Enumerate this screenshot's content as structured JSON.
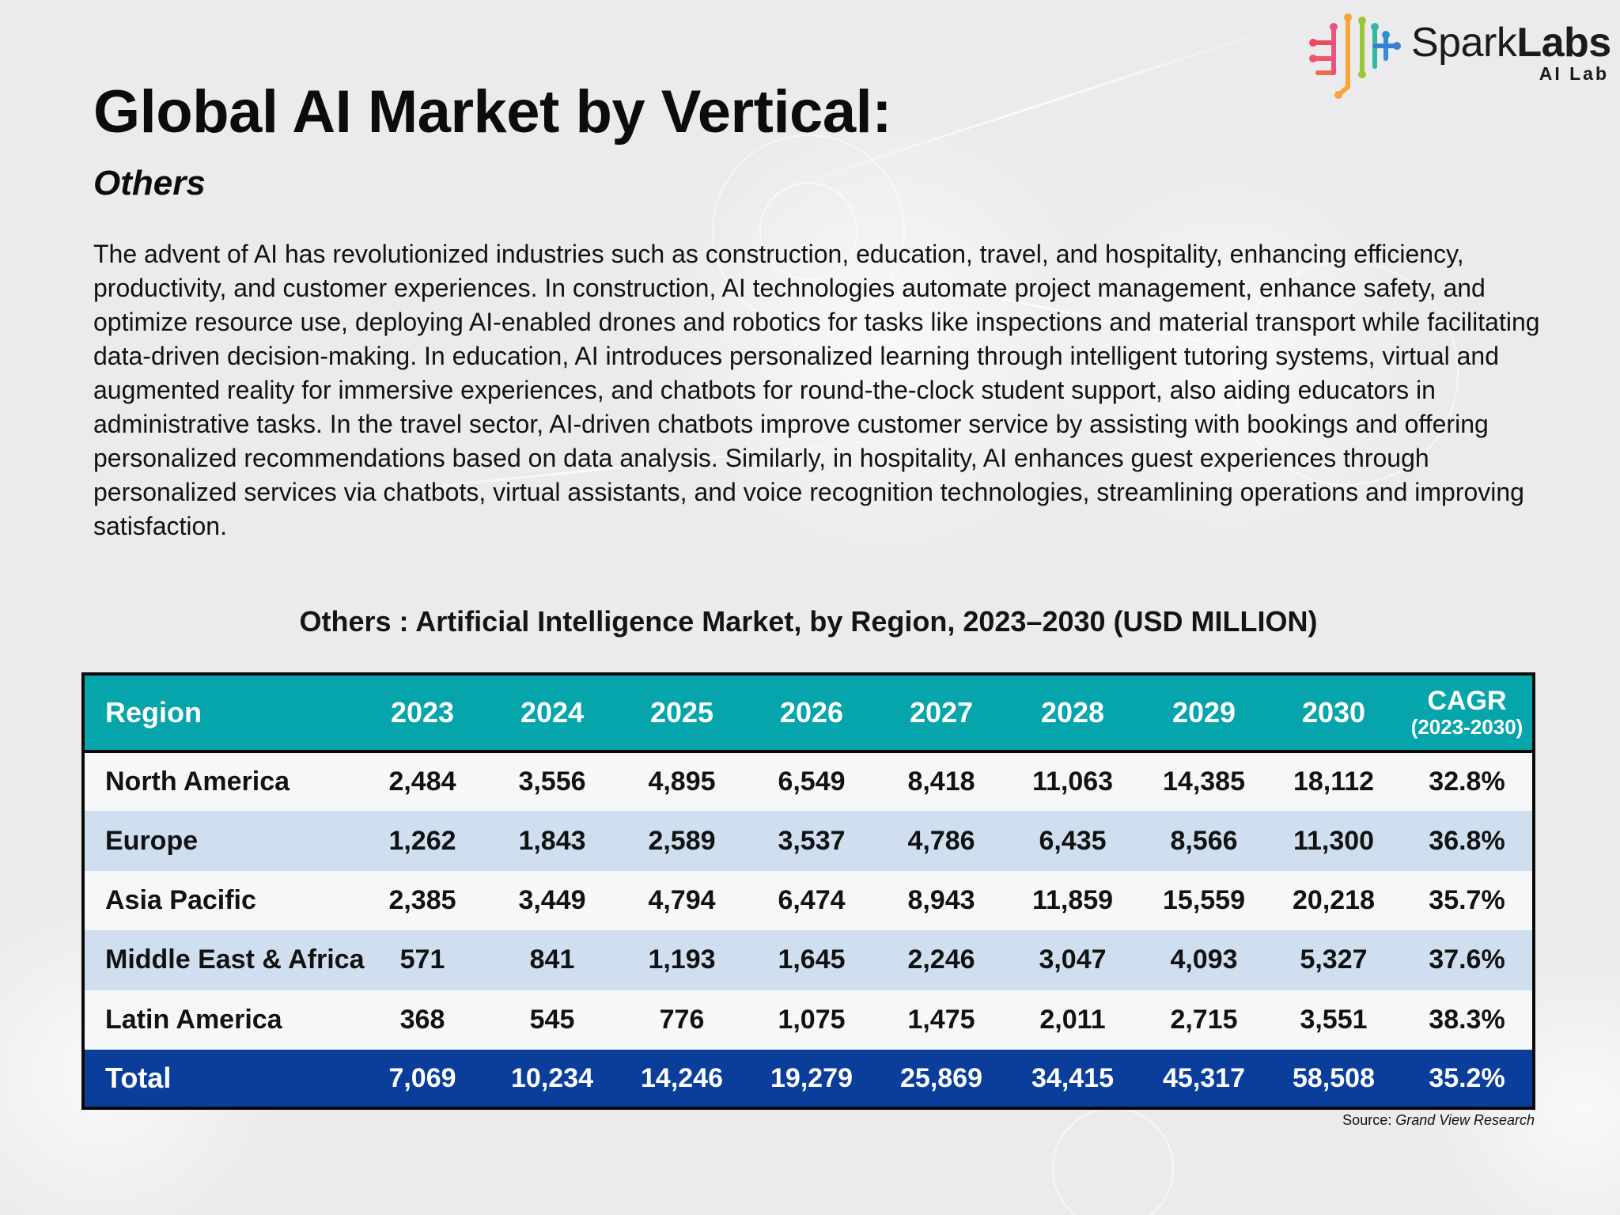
{
  "brand": {
    "name_regular": "Spark",
    "name_bold": "Labs",
    "sub": "AI Lab"
  },
  "page": {
    "title": "Global AI Market by Vertical:",
    "subtitle": "Others",
    "body": "The advent of AI has revolutionized industries such as construction, education, travel, and hospitality, enhancing efficiency, productivity, and customer experiences. In construction, AI technologies automate project management, enhance safety, and optimize resource use, deploying AI-enabled drones and robotics for tasks like inspections and material transport while facilitating data-driven decision-making. In education, AI introduces personalized learning through intelligent tutoring systems, virtual and augmented reality for immersive experiences, and chatbots for round-the-clock student support, also aiding educators in administrative tasks. In the travel sector, AI-driven chatbots improve customer service by assisting with bookings and offering personalized recommendations based on data analysis. Similarly, in hospitality, AI enhances guest experiences through personalized services via chatbots, virtual assistants, and voice recognition technologies, streamlining operations and improving satisfaction."
  },
  "table": {
    "title": "Others : Artificial Intelligence Market, by Region, 2023–2030 (USD MILLION)",
    "headers": {
      "region": "Region",
      "years": [
        "2023",
        "2024",
        "2025",
        "2026",
        "2027",
        "2028",
        "2029",
        "2030"
      ],
      "cagr_main": "CAGR",
      "cagr_sub": "(2023-2030)"
    },
    "rows": [
      {
        "region": "North America",
        "values": [
          "2,484",
          "3,556",
          "4,895",
          "6,549",
          "8,418",
          "11,063",
          "14,385",
          "18,112"
        ],
        "cagr": "32.8%"
      },
      {
        "region": "Europe",
        "values": [
          "1,262",
          "1,843",
          "2,589",
          "3,537",
          "4,786",
          "6,435",
          "8,566",
          "11,300"
        ],
        "cagr": "36.8%"
      },
      {
        "region": "Asia Pacific",
        "values": [
          "2,385",
          "3,449",
          "4,794",
          "6,474",
          "8,943",
          "11,859",
          "15,559",
          "20,218"
        ],
        "cagr": "35.7%"
      },
      {
        "region": "Middle East & Africa",
        "values": [
          "571",
          "841",
          "1,193",
          "1,645",
          "2,246",
          "3,047",
          "4,093",
          "5,327"
        ],
        "cagr": "37.6%"
      },
      {
        "region": "Latin America",
        "values": [
          "368",
          "545",
          "776",
          "1,075",
          "1,475",
          "2,011",
          "2,715",
          "3,551"
        ],
        "cagr": "38.3%"
      }
    ],
    "total": {
      "region": "Total",
      "values": [
        "7,069",
        "10,234",
        "14,246",
        "19,279",
        "25,869",
        "34,415",
        "45,317",
        "58,508"
      ],
      "cagr": "35.2%"
    },
    "source_label": "Source:",
    "source_name": "Grand View Research"
  },
  "colors": {
    "header_teal": "#06a4ab",
    "total_navy": "#0a3e9a",
    "row_alt_blue": "#cfdff0"
  }
}
